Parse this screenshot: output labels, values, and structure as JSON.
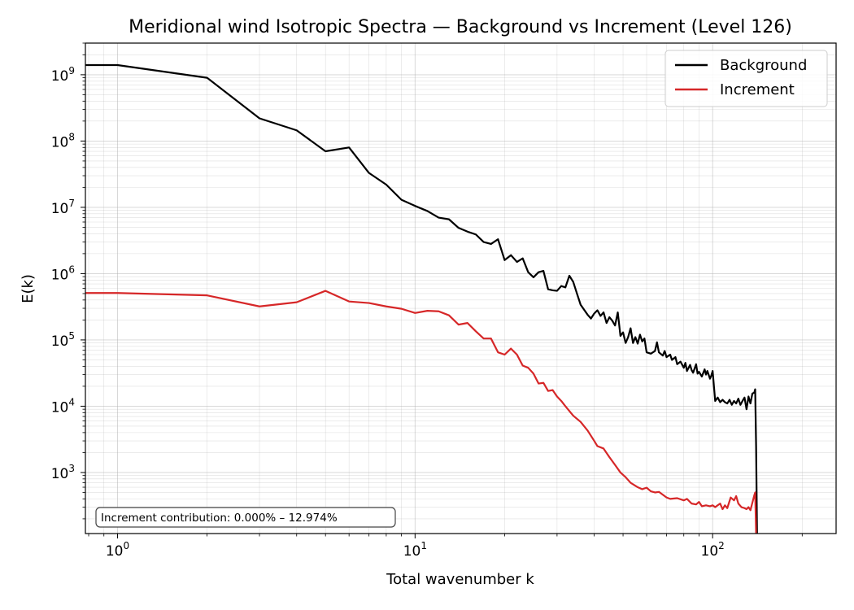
{
  "chart_data": {
    "type": "line",
    "title": "Meridional wind Isotropic Spectra — Background vs Increment (Level 126)",
    "xlabel": "Total wavenumber k",
    "ylabel": "E(k)",
    "xscale": "log",
    "yscale": "log",
    "xlim": [
      0.78,
      260
    ],
    "ylim": [
      120,
      3000000000
    ],
    "grid": true,
    "legend_position": "top-right",
    "x_ticks": [
      {
        "base": "10",
        "exp": "0",
        "value": 1
      },
      {
        "base": "10",
        "exp": "1",
        "value": 10
      },
      {
        "base": "10",
        "exp": "2",
        "value": 100
      }
    ],
    "y_ticks": [
      {
        "base": "10",
        "exp": "3",
        "value": 1000
      },
      {
        "base": "10",
        "exp": "4",
        "value": 10000
      },
      {
        "base": "10",
        "exp": "5",
        "value": 100000
      },
      {
        "base": "10",
        "exp": "6",
        "value": 1000000
      },
      {
        "base": "10",
        "exp": "7",
        "value": 10000000
      },
      {
        "base": "10",
        "exp": "8",
        "value": 100000000
      },
      {
        "base": "10",
        "exp": "9",
        "value": 1000000000
      }
    ],
    "annotation": "Increment contribution: 0.000% – 12.974%",
    "series": [
      {
        "name": "Background",
        "color": "#000000",
        "points": [
          [
            0.78,
            1400000000.0
          ],
          [
            1,
            1400000000.0
          ],
          [
            2,
            900000000.0
          ],
          [
            3,
            220000000.0
          ],
          [
            4,
            145000000.0
          ],
          [
            5,
            70000000.0
          ],
          [
            6,
            80000000.0
          ],
          [
            7,
            33000000.0
          ],
          [
            8,
            22000000.0
          ],
          [
            9,
            13000000.0
          ],
          [
            10,
            10500000.0
          ],
          [
            11,
            8800000.0
          ],
          [
            12,
            7000000.0
          ],
          [
            13,
            6600000.0
          ],
          [
            14,
            4900000.0
          ],
          [
            15,
            4300000.0
          ],
          [
            16,
            3900000.0
          ],
          [
            17,
            3000000.0
          ],
          [
            18,
            2800000.0
          ],
          [
            19,
            3300000.0
          ],
          [
            20,
            1600000.0
          ],
          [
            21,
            1900000.0
          ],
          [
            22,
            1500000.0
          ],
          [
            23,
            1700000.0
          ],
          [
            24,
            1050000.0
          ],
          [
            25,
            880000.0
          ],
          [
            26,
            1050000.0
          ],
          [
            27,
            1100000.0
          ],
          [
            28,
            580000.0
          ],
          [
            29,
            560000.0
          ],
          [
            30,
            550000.0
          ],
          [
            31,
            650000.0
          ],
          [
            32,
            620000.0
          ],
          [
            33,
            930000.0
          ],
          [
            34,
            750000.0
          ],
          [
            35,
            500000.0
          ],
          [
            36,
            340000.0
          ],
          [
            38,
            240000.0
          ],
          [
            39,
            210000.0
          ],
          [
            40,
            250000.0
          ],
          [
            41,
            280000.0
          ],
          [
            42,
            230000.0
          ],
          [
            43,
            260000.0
          ],
          [
            44,
            180000.0
          ],
          [
            45,
            220000.0
          ],
          [
            46,
            195000.0
          ],
          [
            47,
            165000.0
          ],
          [
            48,
            260000.0
          ],
          [
            49,
            115000.0
          ],
          [
            50,
            130000.0
          ],
          [
            51,
            90000.0
          ],
          [
            52,
            110000.0
          ],
          [
            53,
            150000.0
          ],
          [
            54,
            90000.0
          ],
          [
            55,
            110000.0
          ],
          [
            56,
            88000.0
          ],
          [
            57,
            120000.0
          ],
          [
            58,
            95000.0
          ],
          [
            59,
            105000.0
          ],
          [
            60,
            65000.0
          ],
          [
            62,
            62000.0
          ],
          [
            64,
            68000.0
          ],
          [
            65,
            92000.0
          ],
          [
            66,
            65000.0
          ],
          [
            68,
            58000.0
          ],
          [
            69,
            68000.0
          ],
          [
            70,
            55000.0
          ],
          [
            72,
            60000.0
          ],
          [
            73,
            50000.0
          ],
          [
            75,
            55000.0
          ],
          [
            76,
            43000.0
          ],
          [
            78,
            47000.0
          ],
          [
            80,
            38000.0
          ],
          [
            81,
            45000.0
          ],
          [
            82,
            34000.0
          ],
          [
            84,
            42000.0
          ],
          [
            85,
            35000.0
          ],
          [
            86,
            32000.0
          ],
          [
            88,
            43000.0
          ],
          [
            89,
            31000.0
          ],
          [
            90,
            33000.0
          ],
          [
            92,
            28000.0
          ],
          [
            94,
            36000.0
          ],
          [
            95,
            30000.0
          ],
          [
            96,
            34000.0
          ],
          [
            98,
            26000.0
          ],
          [
            99,
            29000.0
          ],
          [
            100,
            34000.0
          ],
          [
            102,
            12000.0
          ],
          [
            104,
            13500.0
          ],
          [
            106,
            11500.0
          ],
          [
            108,
            12500.0
          ],
          [
            110,
            11500.0
          ],
          [
            112,
            11000.0
          ],
          [
            114,
            12500.0
          ],
          [
            116,
            10500.0
          ],
          [
            118,
            12000.0
          ],
          [
            120,
            11000.0
          ],
          [
            122,
            13000.0
          ],
          [
            124,
            10500.0
          ],
          [
            126,
            12000.0
          ],
          [
            128,
            13500.0
          ],
          [
            130,
            9000.0
          ],
          [
            132,
            14000.0
          ],
          [
            134,
            11000.0
          ],
          [
            136,
            15500.0
          ],
          [
            138,
            16000.0
          ],
          [
            139,
            18000.0
          ],
          [
            140,
            2500
          ],
          [
            141,
            120
          ]
        ]
      },
      {
        "name": "Increment",
        "color": "#d62728",
        "points": [
          [
            0.78,
            510000.0
          ],
          [
            1,
            510000.0
          ],
          [
            2,
            470000.0
          ],
          [
            3,
            320000.0
          ],
          [
            4,
            370000.0
          ],
          [
            5,
            550000.0
          ],
          [
            6,
            380000.0
          ],
          [
            7,
            360000.0
          ],
          [
            8,
            320000.0
          ],
          [
            9,
            295000.0
          ],
          [
            10,
            255000.0
          ],
          [
            11,
            275000.0
          ],
          [
            12,
            270000.0
          ],
          [
            13,
            235000.0
          ],
          [
            14,
            170000.0
          ],
          [
            15,
            180000.0
          ],
          [
            16,
            135000.0
          ],
          [
            17,
            105000.0
          ],
          [
            18,
            105000.0
          ],
          [
            19,
            65000.0
          ],
          [
            20,
            60000.0
          ],
          [
            21,
            74000.0
          ],
          [
            22,
            60000.0
          ],
          [
            23,
            41000.0
          ],
          [
            24,
            38000.0
          ],
          [
            25,
            31000.0
          ],
          [
            26,
            22000.0
          ],
          [
            27,
            22500.0
          ],
          [
            28,
            17000.0
          ],
          [
            29,
            17500.0
          ],
          [
            30,
            14000.0
          ],
          [
            31,
            12000.0
          ],
          [
            32,
            10000.0
          ],
          [
            34,
            7200.0
          ],
          [
            36,
            5800.0
          ],
          [
            38,
            4300.0
          ],
          [
            40,
            3000.0
          ],
          [
            41,
            2500.0
          ],
          [
            43,
            2300.0
          ],
          [
            45,
            1700.0
          ],
          [
            47,
            1300.0
          ],
          [
            49,
            1000.0
          ],
          [
            51,
            850
          ],
          [
            53,
            700
          ],
          [
            56,
            600
          ],
          [
            58,
            560
          ],
          [
            60,
            590
          ],
          [
            62,
            520
          ],
          [
            64,
            500
          ],
          [
            66,
            510
          ],
          [
            70,
            420
          ],
          [
            72,
            400
          ],
          [
            76,
            410
          ],
          [
            80,
            380
          ],
          [
            82,
            400
          ],
          [
            85,
            340
          ],
          [
            88,
            330
          ],
          [
            90,
            360
          ],
          [
            92,
            310
          ],
          [
            95,
            320
          ],
          [
            98,
            310
          ],
          [
            100,
            320
          ],
          [
            102,
            300
          ],
          [
            104,
            320
          ],
          [
            106,
            340
          ],
          [
            108,
            280
          ],
          [
            110,
            320
          ],
          [
            112,
            290
          ],
          [
            115,
            420
          ],
          [
            118,
            380
          ],
          [
            120,
            440
          ],
          [
            122,
            340
          ],
          [
            125,
            300
          ],
          [
            128,
            290
          ],
          [
            130,
            280
          ],
          [
            132,
            300
          ],
          [
            134,
            270
          ],
          [
            136,
            350
          ],
          [
            138,
            450
          ],
          [
            139,
            500
          ],
          [
            140,
            120
          ]
        ]
      }
    ]
  }
}
